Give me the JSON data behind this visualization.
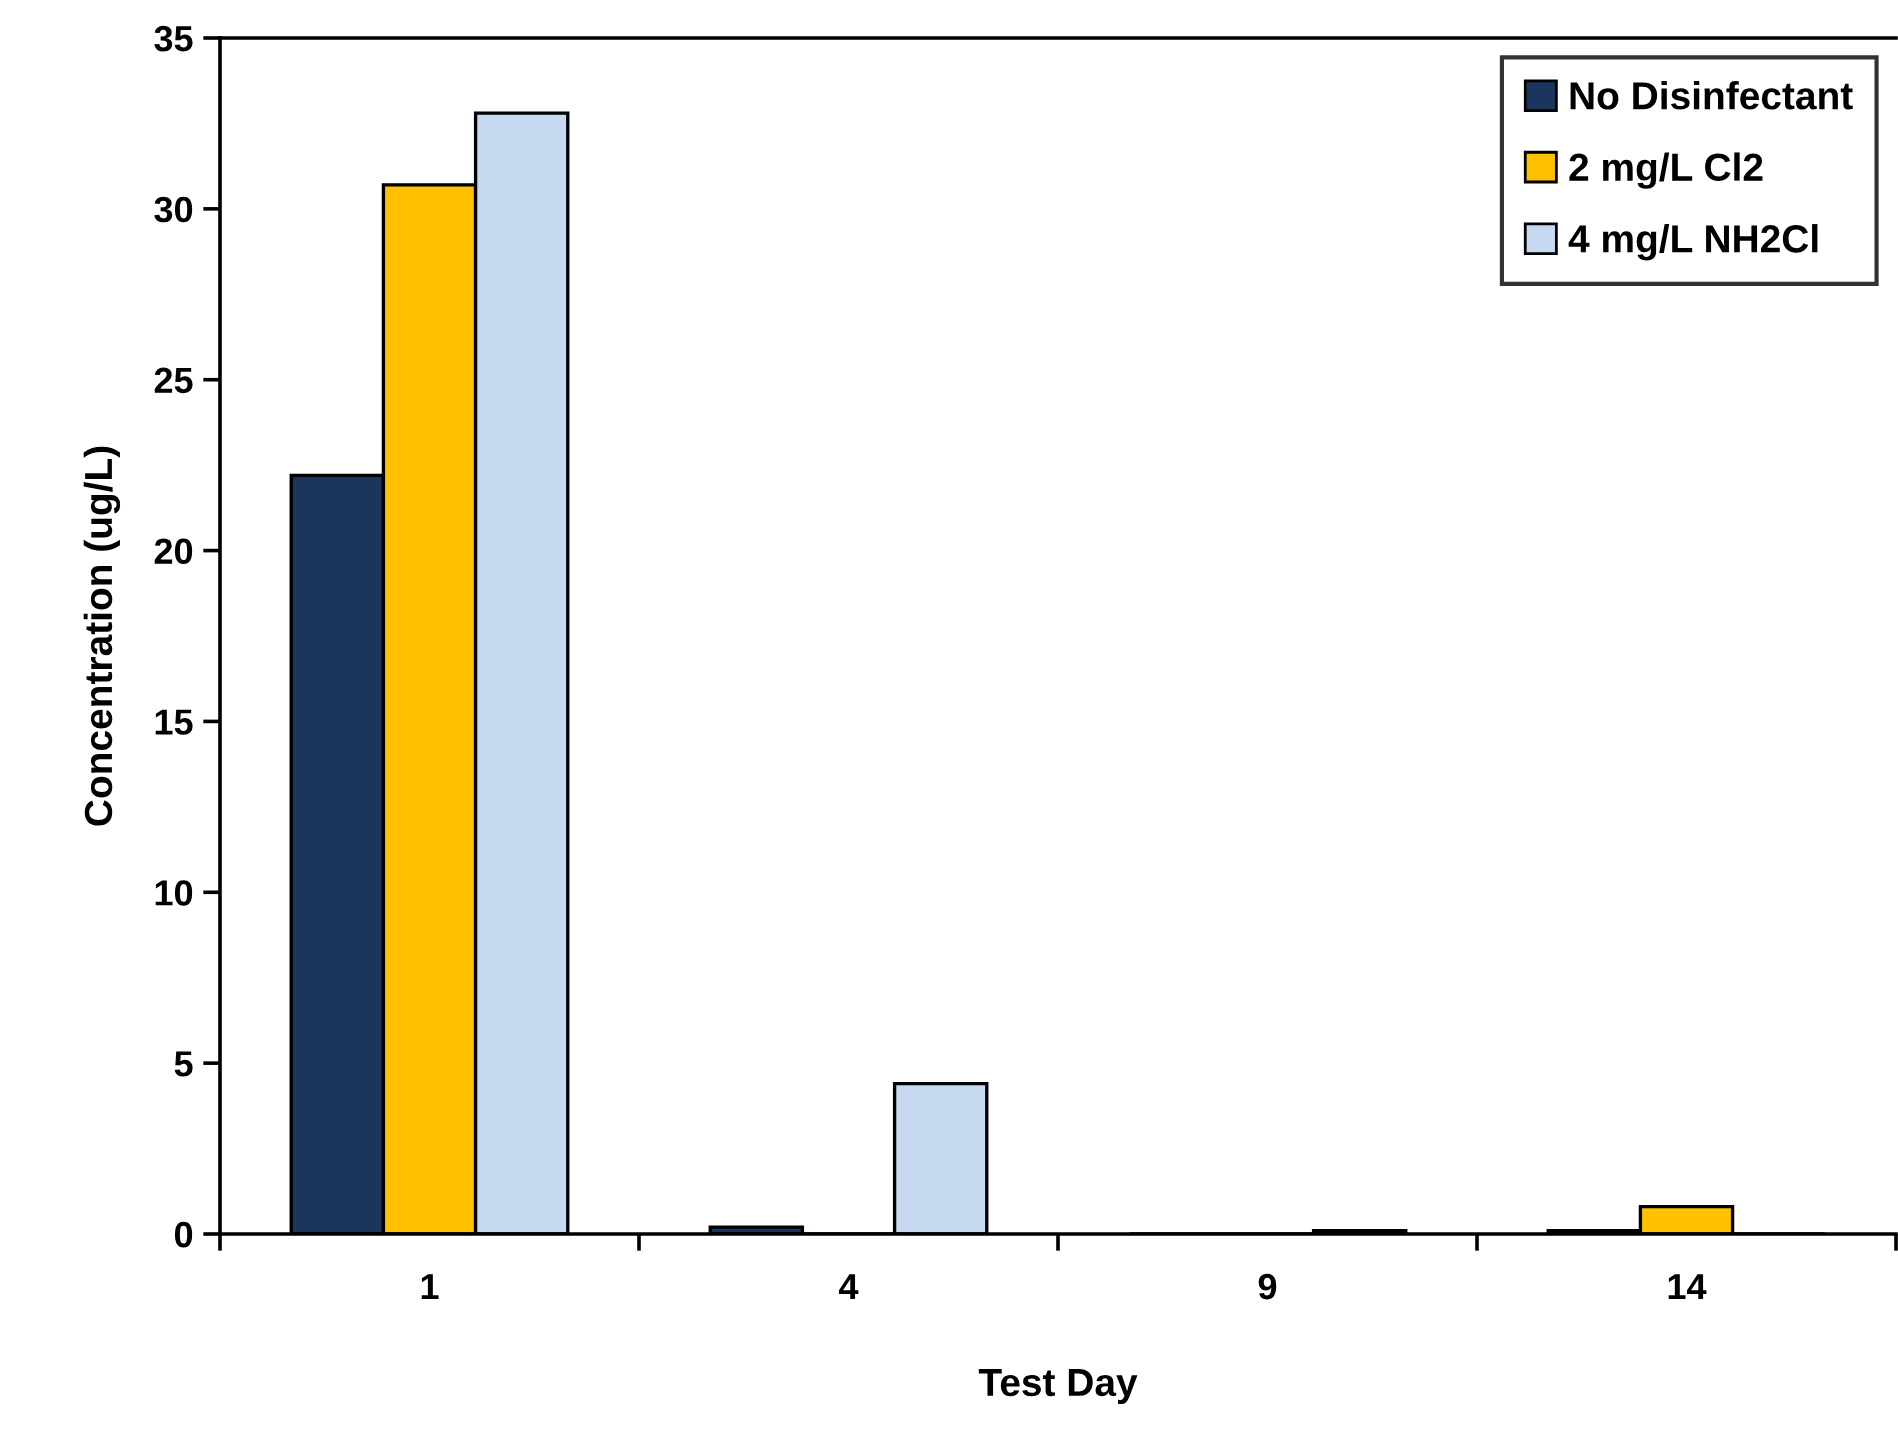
{
  "chart_data": {
    "type": "bar",
    "xlabel": "Test Day",
    "ylabel": "Concentration (ug/L)",
    "categories": [
      "1",
      "4",
      "9",
      "14"
    ],
    "series": [
      {
        "name": "No Disinfectant",
        "color": "#1b365d",
        "values": [
          22.2,
          0.2,
          0,
          0.1
        ]
      },
      {
        "name": "2 mg/L Cl2",
        "color": "#ffc000",
        "values": [
          30.7,
          0,
          0,
          0.8
        ]
      },
      {
        "name": "4 mg/L NH2Cl",
        "color": "#c6d9f0",
        "values": [
          32.8,
          4.4,
          0.1,
          0
        ]
      }
    ],
    "ylim": [
      0,
      35
    ],
    "yticks": [
      0,
      5,
      10,
      15,
      20,
      25,
      30,
      35
    ],
    "grid": false,
    "legend": "top right"
  }
}
